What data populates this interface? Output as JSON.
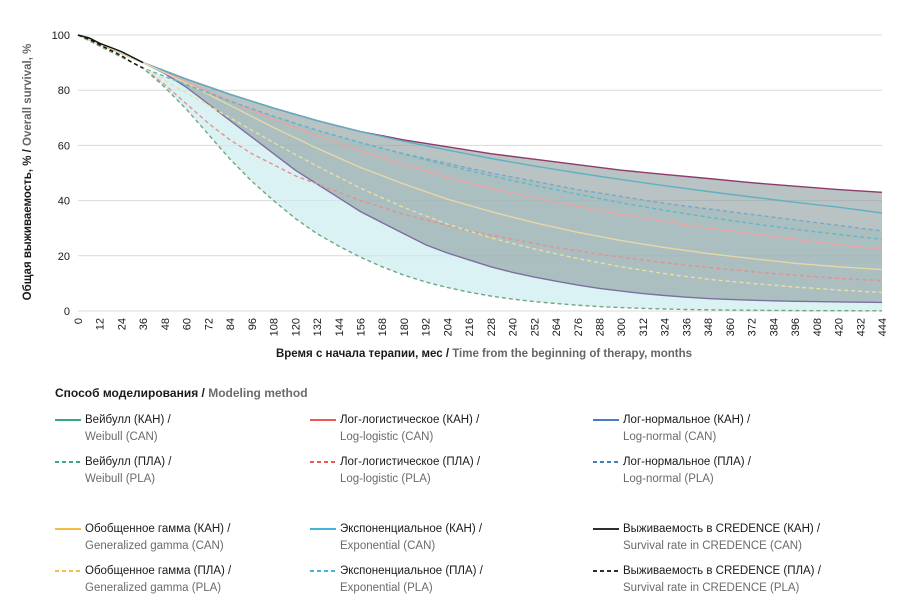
{
  "chart_data": {
    "type": "line",
    "ylabel_ru": "Общая выживаемость, % / ",
    "ylabel_en": "Overall survival, %",
    "xlabel_ru": "Время с начала терапии, мес / ",
    "xlabel_en": "Time from the beginning of therapy, months",
    "xlim": [
      0,
      444
    ],
    "ylim": [
      0,
      100
    ],
    "x_ticks": [
      "0",
      "12",
      "24",
      "36",
      "48",
      "60",
      "72",
      "84",
      "96",
      "108",
      "120",
      "132",
      "144",
      "156",
      "168",
      "180",
      "192",
      "204",
      "216",
      "228",
      "240",
      "252",
      "264",
      "276",
      "288",
      "300",
      "312",
      "324",
      "336",
      "348",
      "360",
      "372",
      "384",
      "396",
      "408",
      "420",
      "432",
      "444"
    ],
    "y_ticks": [
      "0",
      "20",
      "40",
      "60",
      "80",
      "100"
    ],
    "grid": "horizontal",
    "bands": [
      {
        "group": "CAN",
        "fill": "#8e9ea0",
        "opacity": 0.62,
        "upper": "Лог-нормальное (КАН)",
        "lower": "Вейбулл (КАН)"
      },
      {
        "group": "PLA",
        "fill": "#c8ebee",
        "opacity": 0.65,
        "upper": "Лог-нормальное (ПЛА)",
        "lower": "Вейбулл (ПЛА)"
      }
    ],
    "series": [
      {
        "name": "Вейбулл (КАН)",
        "color": "#7d6fa0",
        "dash": "solid",
        "x": [
          0,
          36,
          48,
          60,
          72,
          84,
          96,
          108,
          120,
          132,
          144,
          156,
          168,
          180,
          192,
          204,
          216,
          228,
          240,
          252,
          264,
          276,
          288,
          300,
          312,
          324,
          336,
          348,
          360,
          372,
          384,
          396,
          408,
          420,
          432,
          444
        ],
        "y": [
          100,
          90,
          86,
          81,
          75,
          69,
          63,
          57,
          51,
          46,
          41,
          36,
          32,
          28,
          24,
          21,
          18.5,
          16,
          14,
          12.3,
          10.8,
          9.4,
          8.2,
          7.2,
          6.3,
          5.6,
          5,
          4.5,
          4.2,
          3.9,
          3.7,
          3.5,
          3.4,
          3.3,
          3.2,
          3.1
        ]
      },
      {
        "name": "Лог-логистическое (КАН)",
        "color": "#eba4a4",
        "dash": "solid",
        "x": [
          0,
          36,
          60,
          84,
          108,
          132,
          156,
          180,
          204,
          228,
          252,
          276,
          300,
          324,
          348,
          372,
          396,
          420,
          444
        ],
        "y": [
          100,
          90,
          83,
          76,
          69.5,
          63.5,
          58,
          53,
          48.5,
          44.5,
          41,
          38,
          35,
          32.5,
          30,
          28,
          26,
          24,
          22.5
        ]
      },
      {
        "name": "Лог-нормальное (КАН)",
        "color": "#8f3a6b",
        "dash": "solid",
        "x": [
          0,
          36,
          60,
          84,
          108,
          132,
          156,
          180,
          204,
          228,
          252,
          276,
          300,
          324,
          348,
          372,
          396,
          420,
          444
        ],
        "y": [
          100,
          90,
          84,
          78.5,
          73.5,
          69,
          65,
          62,
          59.5,
          57,
          55,
          53,
          51,
          49.5,
          48,
          46.5,
          45.2,
          44,
          43
        ]
      },
      {
        "name": "Экспоненциальное (КАН)",
        "color": "#5fb1c2",
        "dash": "solid",
        "x": [
          0,
          36,
          60,
          84,
          108,
          132,
          156,
          180,
          204,
          228,
          252,
          276,
          300,
          324,
          348,
          372,
          396,
          420,
          444
        ],
        "y": [
          100,
          90,
          84,
          78.5,
          73.5,
          69,
          65,
          61.5,
          58.3,
          55.3,
          52.5,
          50,
          47.6,
          45.4,
          43.3,
          41.3,
          39.4,
          37.6,
          35.5
        ]
      },
      {
        "name": "Обобщенное гамма (КАН)",
        "color": "#e6d7a6",
        "dash": "solid",
        "x": [
          0,
          36,
          60,
          84,
          108,
          132,
          156,
          180,
          204,
          228,
          252,
          276,
          300,
          324,
          348,
          372,
          396,
          420,
          444
        ],
        "y": [
          100,
          90,
          82.5,
          74.5,
          66.5,
          59,
          52,
          46,
          40.5,
          36,
          32,
          28.5,
          25.5,
          23,
          20.8,
          19,
          17.3,
          16,
          15
        ]
      },
      {
        "name": "Лог-нормальное (ПЛА)",
        "color": "#7aa7c8",
        "dash": "dashed",
        "x": [
          0,
          36,
          60,
          84,
          108,
          132,
          156,
          180,
          204,
          228,
          252,
          276,
          300,
          324,
          348,
          372,
          396,
          420,
          444
        ],
        "y": [
          100,
          88,
          82,
          76,
          70.5,
          65.5,
          61,
          57,
          53.5,
          50,
          47,
          44,
          41.5,
          39,
          37,
          35,
          33,
          31,
          29
        ]
      },
      {
        "name": "Экспоненциальное (ПЛА)",
        "color": "#62b8c6",
        "dash": "dashed",
        "x": [
          0,
          36,
          60,
          84,
          108,
          132,
          156,
          180,
          204,
          228,
          252,
          276,
          300,
          324,
          348,
          372,
          396,
          420,
          444
        ],
        "y": [
          100,
          88,
          82,
          76,
          70.5,
          65.5,
          61,
          56.8,
          52.8,
          49,
          45.5,
          42.3,
          39.2,
          36.5,
          34,
          31.7,
          29.6,
          27.7,
          26
        ]
      },
      {
        "name": "Лог-логистическое (ПЛА)",
        "color": "#e98f8f",
        "dash": "dashed",
        "x": [
          0,
          36,
          48,
          60,
          72,
          84,
          96,
          108,
          120,
          132,
          144,
          156,
          168,
          180,
          192,
          204,
          216,
          228,
          240,
          252,
          264,
          276,
          288,
          300,
          312,
          324,
          336,
          348,
          360,
          372,
          384,
          396,
          408,
          420,
          432,
          444
        ],
        "y": [
          100,
          88,
          82,
          75,
          68,
          62,
          57,
          53,
          49,
          46,
          43,
          40,
          37.5,
          35,
          33,
          31,
          29,
          27.5,
          26,
          24.5,
          23,
          21.8,
          20.6,
          19.5,
          18.5,
          17.5,
          16.6,
          15.8,
          15,
          14.3,
          13.6,
          13,
          12.4,
          11.8,
          11.4,
          11
        ]
      },
      {
        "name": "Обобщенное гамма (ПЛА)",
        "color": "#e9dfa2",
        "dash": "dashed",
        "x": [
          0,
          36,
          60,
          84,
          108,
          132,
          156,
          180,
          204,
          228,
          252,
          276,
          300,
          324,
          348,
          372,
          396,
          420,
          444
        ],
        "y": [
          100,
          88,
          79,
          70,
          61,
          52.5,
          44.5,
          37.5,
          31.5,
          26.5,
          22.5,
          19,
          16,
          13.5,
          11.5,
          10,
          8.7,
          7.6,
          6.7
        ]
      },
      {
        "name": "Вейбулл (ПЛА)",
        "color": "#6fa782",
        "dash": "dashed",
        "x": [
          0,
          36,
          48,
          60,
          72,
          84,
          96,
          108,
          120,
          132,
          144,
          156,
          168,
          180,
          192,
          204,
          216,
          228,
          240,
          252,
          264,
          276,
          288,
          300,
          312,
          324,
          336,
          348,
          360,
          372,
          384,
          396,
          408,
          420,
          432,
          444
        ],
        "y": [
          100,
          88,
          81,
          73,
          64,
          55,
          47,
          40,
          33.5,
          28,
          23.5,
          19.5,
          16,
          13,
          10.5,
          8.5,
          6.8,
          5.4,
          4.3,
          3.4,
          2.7,
          2.1,
          1.6,
          1.25,
          0.95,
          0.72,
          0.55,
          0.42,
          0.32,
          0.25,
          0.2,
          0.15,
          0.12,
          0.1,
          0.08,
          0.06
        ]
      },
      {
        "name": "Выживаемость в CREDENCE (КАН)",
        "color": "#111111",
        "dash": "solid",
        "x": [
          0,
          6,
          12,
          18,
          24,
          30,
          36
        ],
        "y": [
          100,
          99,
          97,
          95.5,
          94,
          92,
          90
        ]
      },
      {
        "name": "Выживаемость в CREDENCE (ПЛА)",
        "color": "#111111",
        "dash": "dashed",
        "x": [
          0,
          6,
          12,
          18,
          24,
          30,
          36
        ],
        "y": [
          100,
          98.5,
          96.5,
          94.5,
          92.5,
          90,
          88
        ]
      }
    ]
  },
  "legend": {
    "title_ru": "Способ моделирования / ",
    "title_en": "Modeling method",
    "items": [
      {
        "ru": "Вейбулл (КАН) /",
        "en": "Weibull (CAN)",
        "color": "#1a9e6a",
        "dash": "solid"
      },
      {
        "ru": "Лог-логистическое (КАН) /",
        "en": "Log-logistic (CAN)",
        "color": "#e8443a",
        "dash": "solid"
      },
      {
        "ru": "Лог-нормальное (КАН) /",
        "en": "Log-normal (CAN)",
        "color": "#2c6ab8",
        "dash": "solid"
      },
      {
        "ru": "Вейбулл (ПЛА) /",
        "en": "Weibull (PLA)",
        "color": "#1a9e6a",
        "dash": "dashed"
      },
      {
        "ru": "Лог-логистическое (ПЛА) /",
        "en": "Log-logistic (PLA)",
        "color": "#e8443a",
        "dash": "dashed"
      },
      {
        "ru": "Лог-нормальное (ПЛА) /",
        "en": "Log-normal (PLA)",
        "color": "#2c6ab8",
        "dash": "dashed"
      },
      {
        "ru": "Обобщенное гамма (КАН) /",
        "en": "Generalized gamma (CAN)",
        "color": "#f0b429",
        "dash": "solid"
      },
      {
        "ru": "Экспоненциальное (КАН) /",
        "en": "Exponential (CAN)",
        "color": "#29a9d8",
        "dash": "solid"
      },
      {
        "ru": "Выживаемость в CREDENCE (КАН) /",
        "en": "Survival rate in CREDENCE (CAN)",
        "color": "#111111",
        "dash": "solid"
      },
      {
        "ru": "Обобщенное гамма (ПЛА) /",
        "en": "Generalized gamma (PLA)",
        "color": "#f0b429",
        "dash": "dashed"
      },
      {
        "ru": "Экспоненциальное (ПЛА) /",
        "en": "Exponential (PLA)",
        "color": "#29a9d8",
        "dash": "dashed"
      },
      {
        "ru": "Выживаемость в CREDENCE (ПЛА) /",
        "en": "Survival rate in CREDENCE (PLA)",
        "color": "#111111",
        "dash": "dashed"
      }
    ]
  }
}
